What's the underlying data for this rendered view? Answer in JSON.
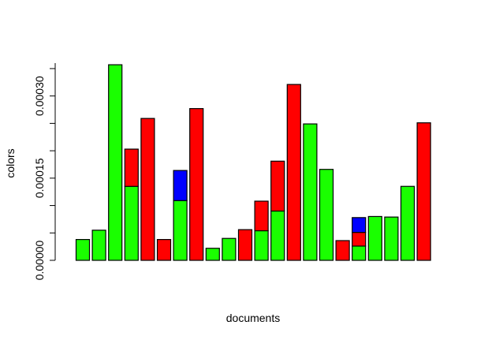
{
  "chart_data": {
    "type": "bar",
    "stacked": true,
    "title": "",
    "xlabel": "documents",
    "ylabel": "colors",
    "ylim": [
      0,
      0.00036
    ],
    "yticks": [
      0.0,
      0.00015,
      0.0003
    ],
    "ytick_labels": [
      "0.00000",
      "0.00015",
      "0.00030"
    ],
    "bar_border_color": "#000000",
    "series": [
      {
        "color": "#1aff00",
        "values": [
          3.8e-05,
          5.5e-05,
          0.000357,
          0.000135,
          0.0,
          0.0,
          0.000109,
          0.0,
          2.2e-05,
          4e-05,
          0.0,
          5.4e-05,
          9e-05,
          0.0,
          0.000249,
          0.000166,
          0.0,
          2.6e-05,
          8e-05,
          7.9e-05,
          0.000135,
          0.0
        ]
      },
      {
        "color": "#ff0000",
        "values": [
          0.0,
          0.0,
          0.0,
          6.8e-05,
          0.000259,
          3.8e-05,
          0.0,
          0.000277,
          0.0,
          0.0,
          5.6e-05,
          5.4e-05,
          9.1e-05,
          0.000321,
          0.0,
          0.0,
          3.6e-05,
          2.5e-05,
          0.0,
          0.0,
          0.0,
          0.000251
        ]
      },
      {
        "color": "#0000ff",
        "values": [
          0.0,
          0.0,
          0.0,
          0.0,
          0.0,
          0.0,
          5.5e-05,
          0.0,
          0.0,
          0.0,
          0.0,
          0.0,
          0.0,
          0.0,
          0.0,
          0.0,
          0.0,
          2.7e-05,
          0.0,
          0.0,
          0.0,
          0.0
        ]
      }
    ]
  }
}
